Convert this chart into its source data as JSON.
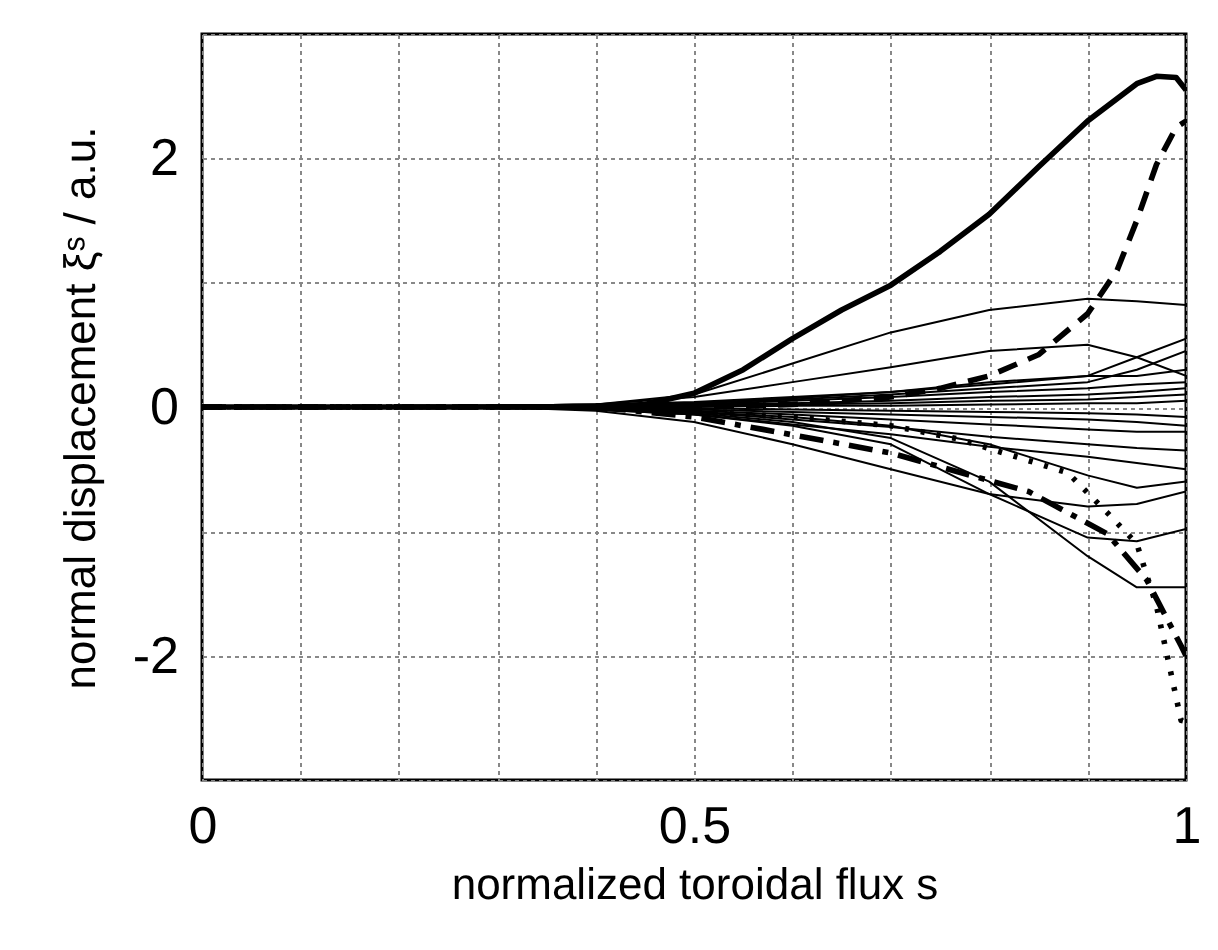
{
  "chart_data": {
    "type": "line",
    "xlabel": "normalized toroidal flux   s",
    "ylabel": "normal displacement ξˢ / a.u.",
    "xlim": [
      0,
      1
    ],
    "ylim": [
      -3,
      3
    ],
    "xticks": [
      0,
      {
        "value": 0.1,
        "label": null
      },
      {
        "value": 0.2,
        "label": null
      },
      {
        "value": 0.3,
        "label": null
      },
      {
        "value": 0.4,
        "label": null
      },
      0.5,
      {
        "value": 0.6,
        "label": null
      },
      {
        "value": 0.7,
        "label": null
      },
      {
        "value": 0.8,
        "label": null
      },
      {
        "value": 0.9,
        "label": null
      },
      1
    ],
    "yticks": [
      {
        "value": -3,
        "label": null
      },
      -2,
      {
        "value": -1,
        "label": null
      },
      0,
      {
        "value": 1,
        "label": null
      },
      2,
      {
        "value": 3,
        "label": null
      }
    ],
    "grid": true,
    "x": [
      0,
      0.3,
      0.4,
      0.5,
      0.6,
      0.7,
      0.8,
      0.9,
      0.95,
      1.0
    ],
    "series": [
      {
        "color": "#000000",
        "line_style": "solid",
        "x": [
          0,
          0.3,
          0.4,
          0.45,
          0.5,
          0.55,
          0.6,
          0.65,
          0.7,
          0.75,
          0.8,
          0.85,
          0.9,
          0.95,
          0.97,
          0.99,
          1.0
        ],
        "values": [
          0,
          0,
          0,
          0.02,
          0.11,
          0.3,
          0.55,
          0.78,
          0.98,
          1.25,
          1.55,
          1.93,
          2.3,
          2.6,
          2.66,
          2.65,
          2.55
        ]
      },
      {
        "color": "#000000",
        "line_style": "dashed",
        "x": [
          0,
          0.5,
          0.6,
          0.7,
          0.75,
          0.8,
          0.85,
          0.9,
          0.93,
          0.95,
          0.97,
          0.99,
          1.0
        ],
        "values": [
          0,
          0,
          0.02,
          0.08,
          0.15,
          0.25,
          0.42,
          0.75,
          1.1,
          1.5,
          1.95,
          2.25,
          2.3
        ]
      },
      {
        "color": "#000000",
        "line_style": "dashdot",
        "x": [
          0,
          0.4,
          0.5,
          0.57,
          0.7,
          0.84,
          0.92,
          0.96,
          0.995,
          1.0
        ],
        "values": [
          0,
          0,
          -0.08,
          -0.18,
          -0.37,
          -0.68,
          -1.02,
          -1.39,
          -1.92,
          -2.0
        ]
      },
      {
        "color": "#000000",
        "line_style": "dotted",
        "x": [
          0,
          0.4,
          0.6,
          0.7,
          0.77,
          0.88,
          0.92,
          0.95,
          0.97,
          0.995,
          1.0
        ],
        "values": [
          0,
          0,
          -0.08,
          -0.15,
          -0.26,
          -0.53,
          -0.85,
          -1.1,
          -1.6,
          -2.52,
          -2.53
        ]
      },
      {
        "color": "#000000",
        "line_style": "solid",
        "values": [
          0,
          0.01,
          0.02,
          0.1,
          0.35,
          0.6,
          0.78,
          0.87,
          0.85,
          0.82
        ]
      },
      {
        "color": "#000000",
        "line_style": "solid",
        "values": [
          0,
          0.01,
          0.02,
          0.08,
          0.2,
          0.32,
          0.45,
          0.5,
          0.4,
          0.25
        ]
      },
      {
        "color": "#000000",
        "line_style": "solid",
        "values": [
          0,
          0.01,
          0.02,
          0.04,
          0.08,
          0.12,
          0.18,
          0.25,
          0.4,
          0.55
        ]
      },
      {
        "color": "#000000",
        "line_style": "solid",
        "values": [
          0,
          0.01,
          0.02,
          0.03,
          0.06,
          0.1,
          0.15,
          0.2,
          0.3,
          0.45
        ]
      },
      {
        "color": "#000000",
        "line_style": "solid",
        "values": [
          0,
          0.01,
          0.01,
          0.03,
          0.07,
          0.12,
          0.2,
          0.25,
          0.25,
          0.3
        ]
      },
      {
        "color": "#000000",
        "line_style": "solid",
        "values": [
          0,
          0,
          0.01,
          0.02,
          0.05,
          0.08,
          0.12,
          0.15,
          0.18,
          0.2
        ]
      },
      {
        "color": "#000000",
        "line_style": "solid",
        "values": [
          0,
          0,
          0.01,
          0.02,
          0.03,
          0.05,
          0.08,
          0.1,
          0.12,
          0.15
        ]
      },
      {
        "color": "#000000",
        "line_style": "solid",
        "values": [
          0,
          0,
          0,
          0.01,
          0.02,
          0.03,
          0.05,
          0.06,
          0.08,
          0.1
        ]
      },
      {
        "color": "#000000",
        "line_style": "solid",
        "values": [
          0,
          0,
          0,
          0,
          0.01,
          0.01,
          0.02,
          0.03,
          0.03,
          0.05
        ]
      },
      {
        "color": "#000000",
        "line_style": "solid",
        "values": [
          0,
          0,
          0,
          -0.01,
          -0.02,
          -0.03,
          -0.04,
          -0.05,
          -0.06,
          -0.08
        ]
      },
      {
        "color": "#000000",
        "line_style": "solid",
        "values": [
          0,
          0,
          -0.01,
          -0.02,
          -0.04,
          -0.06,
          -0.08,
          -0.1,
          -0.12,
          -0.15
        ]
      },
      {
        "color": "#000000",
        "line_style": "solid",
        "values": [
          0,
          0,
          -0.01,
          -0.03,
          -0.06,
          -0.1,
          -0.14,
          -0.18,
          -0.2,
          -0.2
        ]
      },
      {
        "color": "#000000",
        "line_style": "solid",
        "values": [
          0,
          0,
          -0.01,
          -0.04,
          -0.1,
          -0.16,
          -0.24,
          -0.3,
          -0.33,
          -0.35
        ]
      },
      {
        "color": "#000000",
        "line_style": "solid",
        "values": [
          0,
          0,
          -0.02,
          -0.06,
          -0.14,
          -0.22,
          -0.32,
          -0.4,
          -0.45,
          -0.5
        ]
      },
      {
        "color": "#000000",
        "line_style": "solid",
        "values": [
          0,
          0,
          -0.03,
          -0.12,
          -0.3,
          -0.5,
          -0.7,
          -0.8,
          -0.78,
          -0.68
        ]
      },
      {
        "color": "#000000",
        "line_style": "solid",
        "values": [
          0,
          0,
          -0.02,
          -0.06,
          -0.15,
          -0.3,
          -0.7,
          -1.05,
          -1.08,
          -0.98
        ]
      },
      {
        "color": "#000000",
        "line_style": "solid",
        "values": [
          0,
          0,
          -0.02,
          -0.05,
          -0.12,
          -0.25,
          -0.6,
          -1.2,
          -1.45,
          -1.45
        ]
      },
      {
        "color": "#000000",
        "line_style": "solid",
        "values": [
          0,
          0,
          -0.01,
          -0.04,
          -0.08,
          -0.15,
          -0.3,
          -0.55,
          -0.65,
          -0.6
        ]
      }
    ]
  }
}
